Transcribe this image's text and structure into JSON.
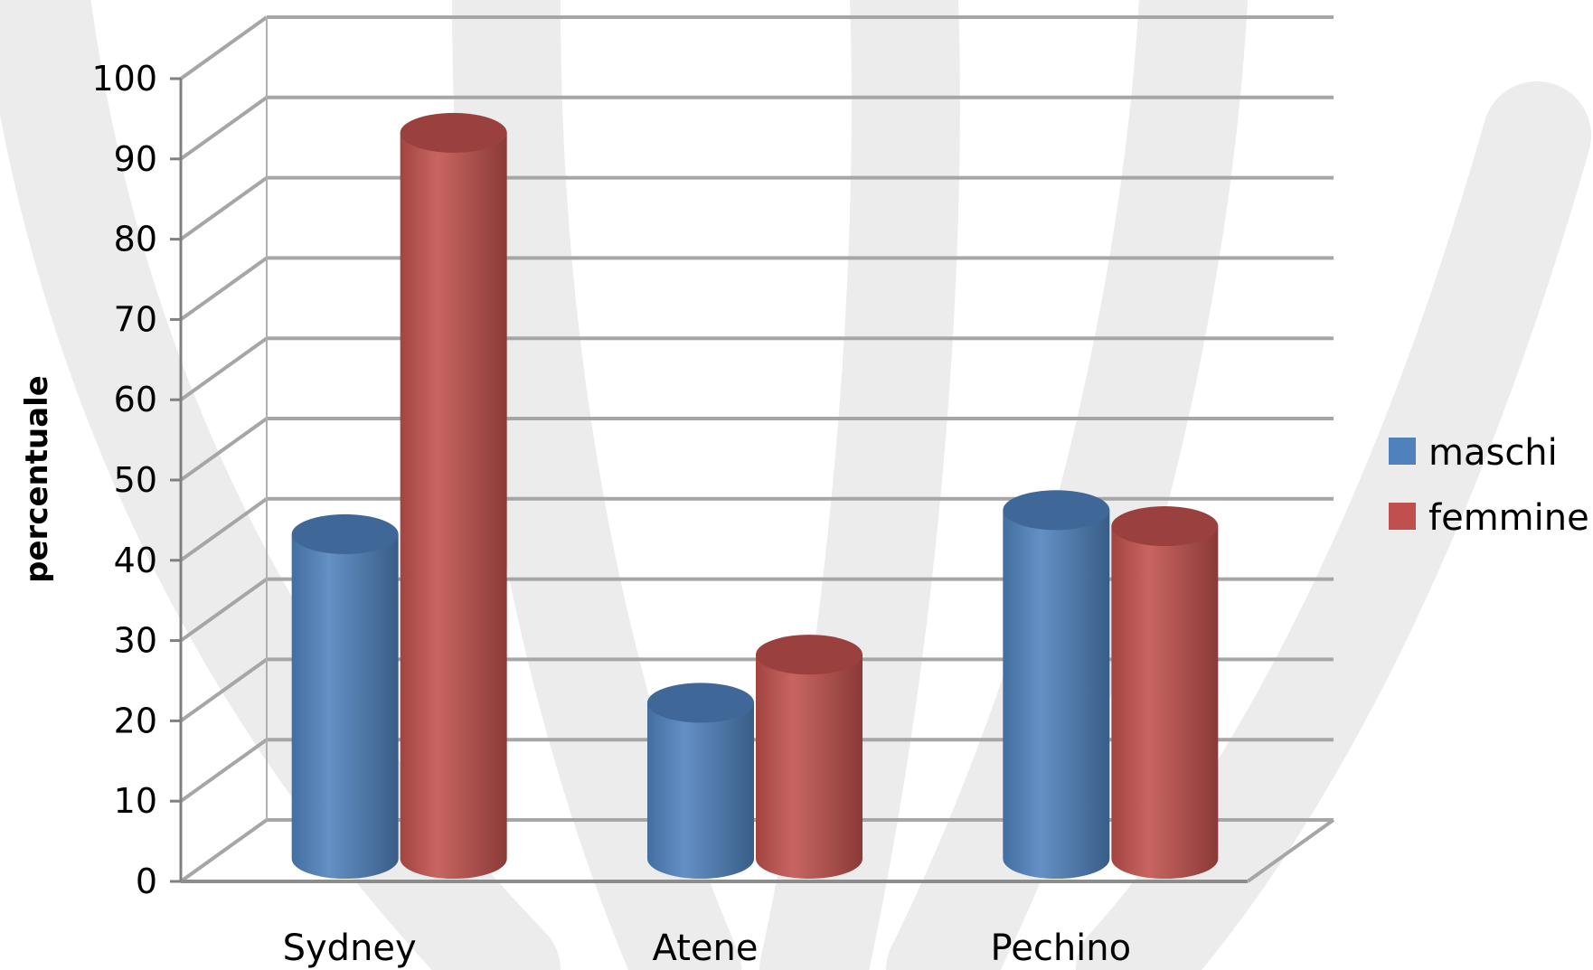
{
  "chart_data": {
    "type": "bar",
    "style": "3d-cylinder",
    "categories": [
      "Sydney",
      "Atene",
      "Pechino"
    ],
    "series": [
      {
        "name": "maschi",
        "values": [
          41,
          20,
          44
        ],
        "color": "#4f81bd"
      },
      {
        "name": "femmine",
        "values": [
          91,
          26,
          42
        ],
        "color": "#c0504d"
      }
    ],
    "title": "",
    "xlabel": "",
    "ylabel": "percentuale",
    "ylim": [
      0,
      100
    ],
    "yticks": [
      0,
      10,
      20,
      30,
      40,
      50,
      60,
      70,
      80,
      90,
      100
    ],
    "grid": true,
    "legend_position": "right"
  }
}
